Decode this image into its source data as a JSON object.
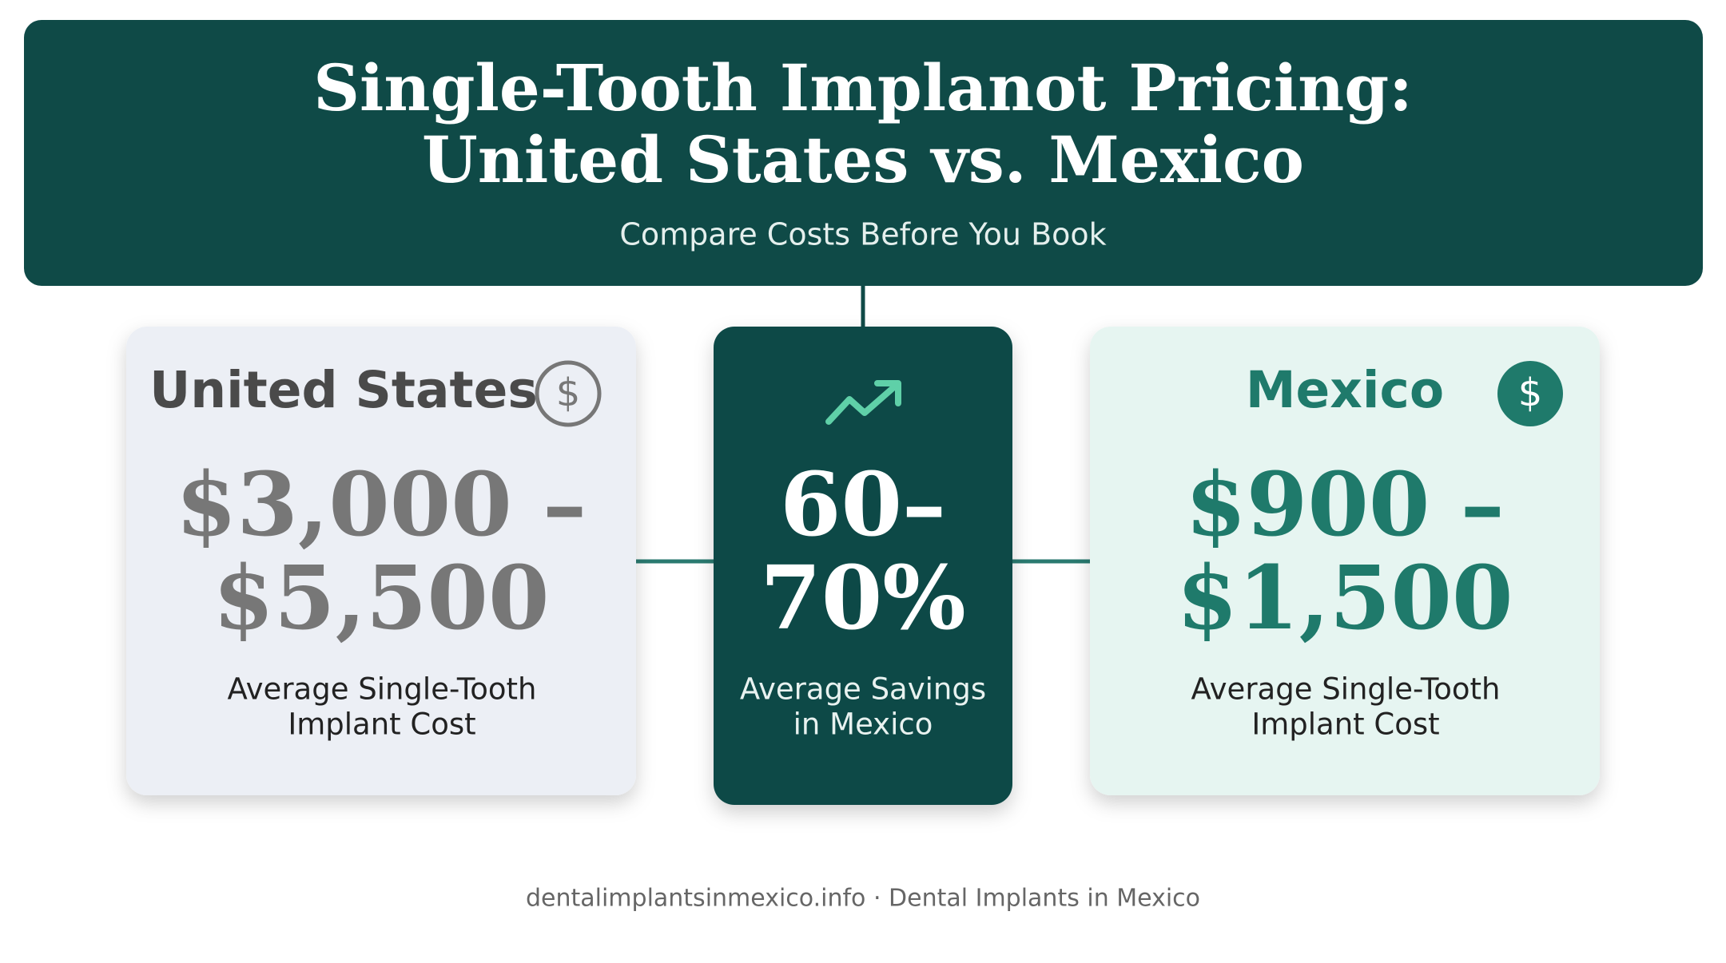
{
  "header": {
    "title": [
      "Single-Tooth Implanot Pricing:",
      "United States vs. Mexico"
    ],
    "subtitle": "Compare Costs Before You Book"
  },
  "cards": [
    {
      "heading": "United States",
      "price": [
        "$3,000 –",
        "$5,500"
      ],
      "caption": [
        "Average Single-Tooth",
        "Implant Cost"
      ]
    },
    {
      "price": [
        "60–",
        "70%"
      ],
      "caption": [
        "Average Savings",
        "in Mexico"
      ]
    },
    {
      "heading": "Mexico",
      "price": [
        "$900 –",
        "$1,500"
      ],
      "caption": [
        "Average Single-Tooth",
        "Implant Cost"
      ]
    }
  ],
  "footer": "dentalimplantsinmexico.info · Dental Implants in Mexico"
}
